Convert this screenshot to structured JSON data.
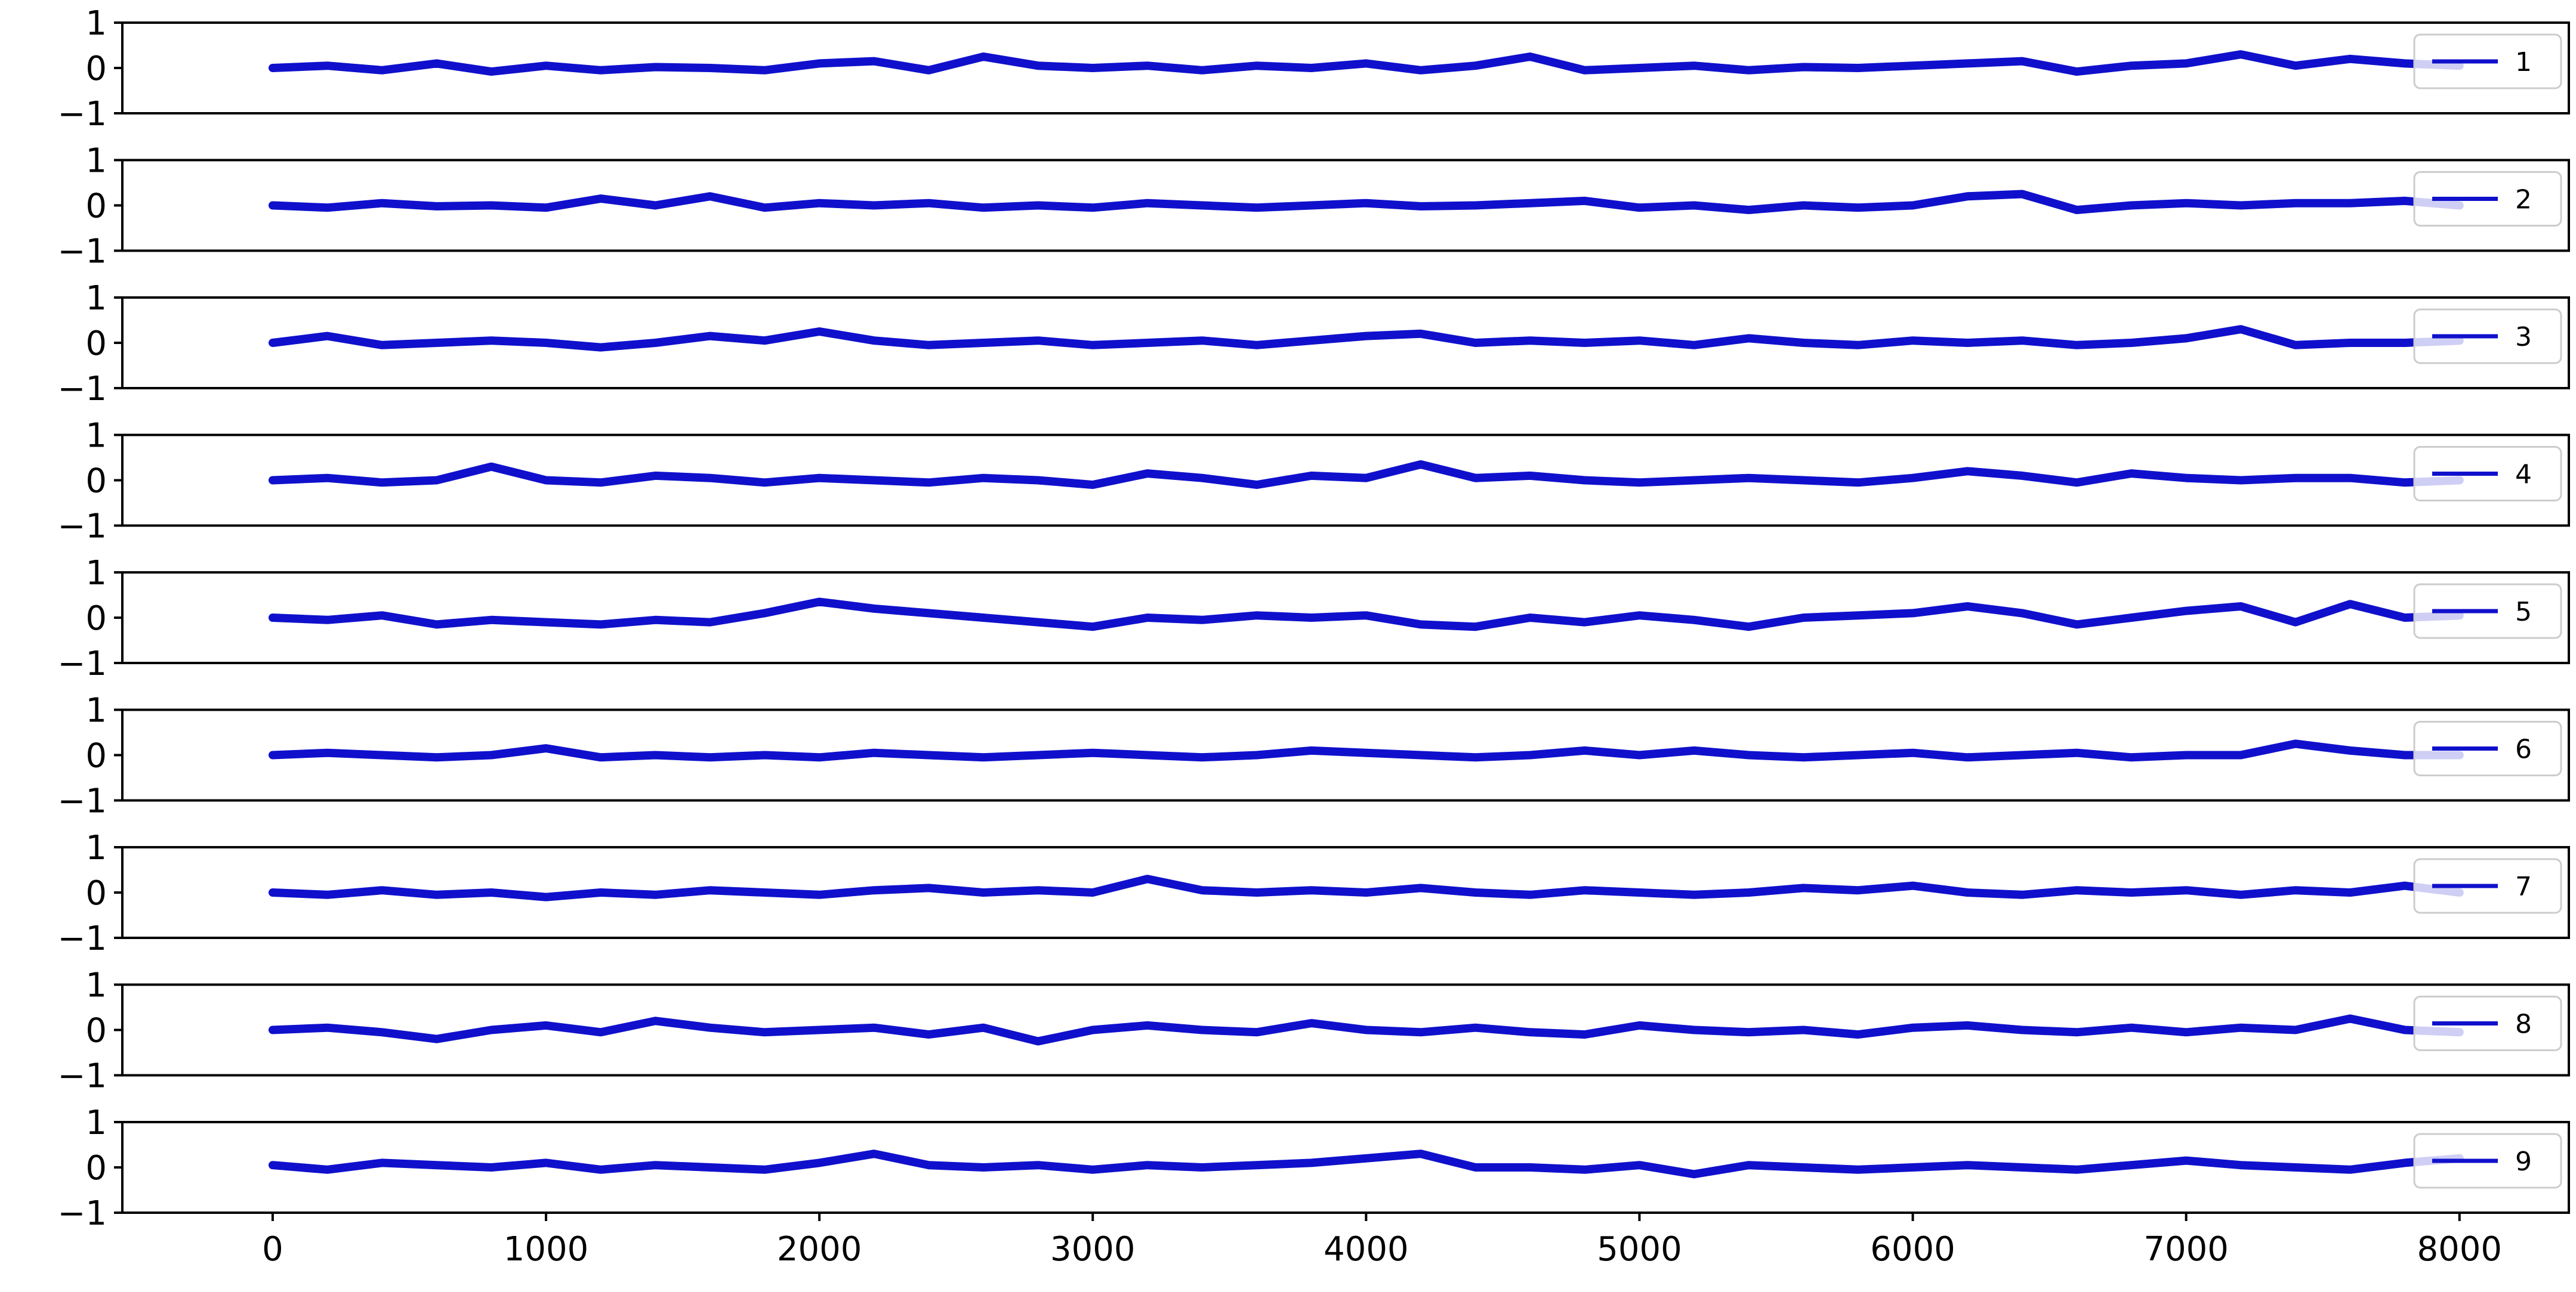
{
  "chart_data": {
    "type": "line",
    "subplots": 9,
    "shared_x": true,
    "xlim": [
      -550,
      8400
    ],
    "ylim": [
      -1,
      1
    ],
    "x_ticks": [
      0,
      1000,
      2000,
      3000,
      4000,
      5000,
      6000,
      7000,
      8000
    ],
    "x_tick_labels": [
      "0",
      "1000",
      "2000",
      "3000",
      "4000",
      "5000",
      "6000",
      "7000",
      "8000"
    ],
    "y_ticks": [
      1,
      0,
      -1
    ],
    "y_tick_labels": [
      "1",
      "0",
      "−1"
    ],
    "grid": false,
    "legend_placement": "right",
    "line_color": "#1010cc",
    "x": [
      0,
      200,
      400,
      600,
      800,
      1000,
      1200,
      1400,
      1600,
      1800,
      2000,
      2200,
      2400,
      2600,
      2800,
      3000,
      3200,
      3400,
      3600,
      3800,
      4000,
      4200,
      4400,
      4600,
      4800,
      5000,
      5200,
      5400,
      5600,
      5800,
      6000,
      6200,
      6400,
      6600,
      6800,
      7000,
      7200,
      7400,
      7600,
      7800,
      8000
    ],
    "series": [
      {
        "name": "1",
        "values": [
          0.0,
          0.05,
          -0.05,
          0.1,
          -0.08,
          0.05,
          -0.05,
          0.02,
          0.0,
          -0.05,
          0.1,
          0.15,
          -0.05,
          0.25,
          0.05,
          0.0,
          0.05,
          -0.05,
          0.05,
          0.0,
          0.1,
          -0.05,
          0.05,
          0.25,
          -0.05,
          0.0,
          0.05,
          -0.05,
          0.02,
          0.0,
          0.05,
          0.1,
          0.15,
          -0.08,
          0.05,
          0.1,
          0.3,
          0.05,
          0.2,
          0.1,
          0.05
        ]
      },
      {
        "name": "2",
        "values": [
          0.0,
          -0.05,
          0.05,
          -0.02,
          0.0,
          -0.05,
          0.15,
          0.0,
          0.2,
          -0.05,
          0.05,
          0.0,
          0.05,
          -0.05,
          0.0,
          -0.05,
          0.05,
          0.0,
          -0.05,
          0.0,
          0.05,
          -0.02,
          0.0,
          0.05,
          0.1,
          -0.05,
          0.0,
          -0.1,
          0.0,
          -0.05,
          0.0,
          0.2,
          0.25,
          -0.1,
          0.0,
          0.05,
          0.0,
          0.05,
          0.05,
          0.1,
          0.0
        ]
      },
      {
        "name": "3",
        "values": [
          0.0,
          0.15,
          -0.05,
          0.0,
          0.05,
          0.0,
          -0.1,
          0.0,
          0.15,
          0.05,
          0.25,
          0.05,
          -0.05,
          0.0,
          0.05,
          -0.05,
          0.0,
          0.05,
          -0.05,
          0.05,
          0.15,
          0.2,
          0.0,
          0.05,
          0.0,
          0.05,
          -0.05,
          0.1,
          0.0,
          -0.05,
          0.05,
          0.0,
          0.05,
          -0.05,
          0.0,
          0.1,
          0.3,
          -0.05,
          0.0,
          0.0,
          0.05
        ]
      },
      {
        "name": "4",
        "values": [
          0.0,
          0.05,
          -0.05,
          0.0,
          0.3,
          0.0,
          -0.05,
          0.1,
          0.05,
          -0.05,
          0.05,
          0.0,
          -0.05,
          0.05,
          0.0,
          -0.1,
          0.15,
          0.05,
          -0.1,
          0.1,
          0.05,
          0.35,
          0.05,
          0.1,
          0.0,
          -0.05,
          0.0,
          0.05,
          0.0,
          -0.05,
          0.05,
          0.2,
          0.1,
          -0.05,
          0.15,
          0.05,
          0.0,
          0.05,
          0.05,
          -0.05,
          0.0
        ]
      },
      {
        "name": "5",
        "values": [
          0.0,
          -0.05,
          0.05,
          -0.15,
          -0.05,
          -0.1,
          -0.15,
          -0.05,
          -0.1,
          0.1,
          0.35,
          0.2,
          0.1,
          0.0,
          -0.1,
          -0.2,
          0.0,
          -0.05,
          0.05,
          0.0,
          0.05,
          -0.15,
          -0.2,
          0.0,
          -0.1,
          0.05,
          -0.05,
          -0.2,
          0.0,
          0.05,
          0.1,
          0.25,
          0.1,
          -0.15,
          0.0,
          0.15,
          0.25,
          -0.1,
          0.3,
          0.0,
          0.05
        ]
      },
      {
        "name": "6",
        "values": [
          0.0,
          0.05,
          0.0,
          -0.05,
          0.0,
          0.15,
          -0.05,
          0.0,
          -0.05,
          0.0,
          -0.05,
          0.05,
          0.0,
          -0.05,
          0.0,
          0.05,
          0.0,
          -0.05,
          0.0,
          0.1,
          0.05,
          0.0,
          -0.05,
          0.0,
          0.1,
          0.0,
          0.1,
          0.0,
          -0.05,
          0.0,
          0.05,
          -0.05,
          0.0,
          0.05,
          -0.05,
          0.0,
          0.0,
          0.25,
          0.1,
          0.0,
          0.0
        ]
      },
      {
        "name": "7",
        "values": [
          0.0,
          -0.05,
          0.05,
          -0.05,
          0.0,
          -0.1,
          0.0,
          -0.05,
          0.05,
          0.0,
          -0.05,
          0.05,
          0.1,
          0.0,
          0.05,
          0.0,
          0.3,
          0.05,
          0.0,
          0.05,
          0.0,
          0.1,
          0.0,
          -0.05,
          0.05,
          0.0,
          -0.05,
          0.0,
          0.1,
          0.05,
          0.15,
          0.0,
          -0.05,
          0.05,
          0.0,
          0.05,
          -0.05,
          0.05,
          0.0,
          0.15,
          0.0
        ]
      },
      {
        "name": "8",
        "values": [
          0.0,
          0.05,
          -0.05,
          -0.2,
          0.0,
          0.1,
          -0.05,
          0.2,
          0.05,
          -0.05,
          0.0,
          0.05,
          -0.1,
          0.05,
          -0.25,
          0.0,
          0.1,
          0.0,
          -0.05,
          0.15,
          0.0,
          -0.05,
          0.05,
          -0.05,
          -0.1,
          0.1,
          0.0,
          -0.05,
          0.0,
          -0.1,
          0.05,
          0.1,
          0.0,
          -0.05,
          0.05,
          -0.05,
          0.05,
          0.0,
          0.25,
          0.0,
          -0.05
        ]
      },
      {
        "name": "9",
        "values": [
          0.05,
          -0.05,
          0.1,
          0.05,
          0.0,
          0.1,
          -0.05,
          0.05,
          0.0,
          -0.05,
          0.1,
          0.3,
          0.05,
          0.0,
          0.05,
          -0.05,
          0.05,
          0.0,
          0.05,
          0.1,
          0.2,
          0.3,
          0.0,
          0.0,
          -0.05,
          0.05,
          -0.15,
          0.05,
          0.0,
          -0.05,
          0.0,
          0.05,
          0.0,
          -0.05,
          0.05,
          0.15,
          0.05,
          0.0,
          -0.05,
          0.1,
          0.2
        ]
      }
    ]
  }
}
